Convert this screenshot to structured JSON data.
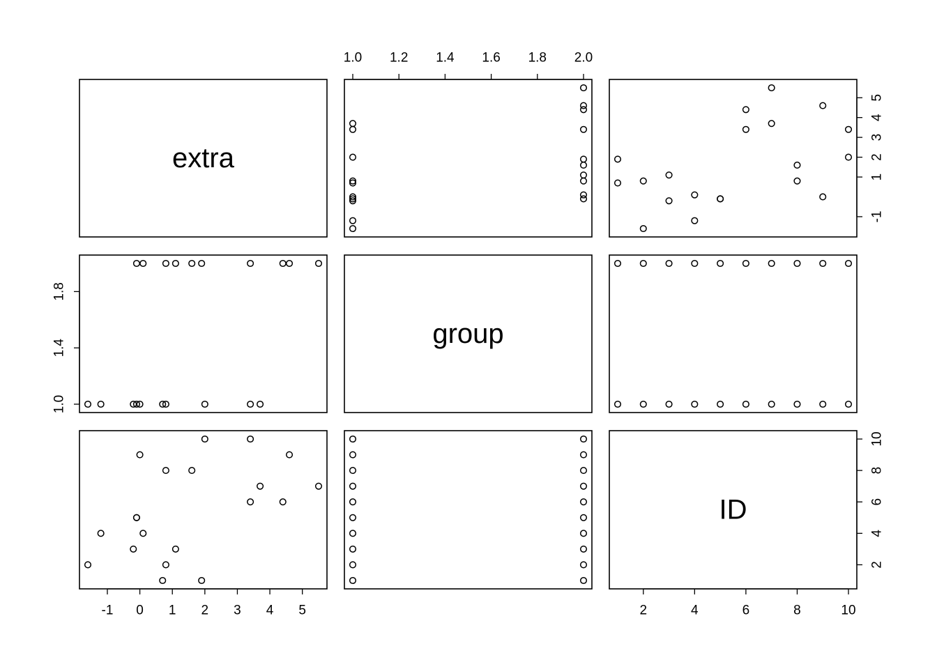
{
  "chart_data": {
    "type": "scatter",
    "subtype": "scatterplot-matrix",
    "title": "",
    "variables": [
      "extra",
      "group",
      "ID"
    ],
    "axes": {
      "extra": {
        "ticks": [
          -1,
          0,
          1,
          2,
          3,
          4,
          5
        ],
        "tick_labels": [
          "-1",
          "0",
          "1",
          "2",
          "3",
          "4",
          "5"
        ],
        "range": [
          -1.6,
          5.5
        ]
      },
      "group": {
        "ticks_top": [
          1.0,
          1.2,
          1.4,
          1.6,
          1.8,
          2.0
        ],
        "tick_labels_top": [
          "1.0",
          "1.2",
          "1.4",
          "1.6",
          "1.8",
          "2.0"
        ],
        "ticks_left": [
          1.0,
          1.4,
          1.8
        ],
        "tick_labels_left": [
          "1.0",
          "1.4",
          "1.8"
        ],
        "range": [
          1,
          2
        ]
      },
      "ID": {
        "ticks_bottom": [
          2,
          4,
          6,
          8,
          10
        ],
        "tick_labels_bottom": [
          "2",
          "4",
          "6",
          "8",
          "10"
        ],
        "ticks_right": [
          2,
          4,
          6,
          8,
          10
        ],
        "tick_labels_right": [
          "2",
          "4",
          "6",
          "8",
          "10"
        ],
        "range": [
          1,
          10
        ]
      }
    },
    "right_axis_extra": {
      "ticks": [
        -1,
        1,
        2,
        3,
        4,
        5
      ],
      "tick_labels": [
        "-1",
        "1",
        "2",
        "3",
        "4",
        "5"
      ]
    },
    "data": {
      "extra": [
        0.7,
        -1.6,
        -0.2,
        -1.2,
        -0.1,
        3.4,
        3.7,
        0.8,
        0.0,
        2.0,
        1.9,
        0.8,
        1.1,
        0.1,
        -0.1,
        4.4,
        5.5,
        1.6,
        4.6,
        3.4
      ],
      "group": [
        1,
        1,
        1,
        1,
        1,
        1,
        1,
        1,
        1,
        1,
        2,
        2,
        2,
        2,
        2,
        2,
        2,
        2,
        2,
        2
      ],
      "ID": [
        1,
        2,
        3,
        4,
        5,
        6,
        7,
        8,
        9,
        10,
        1,
        2,
        3,
        4,
        5,
        6,
        7,
        8,
        9,
        10
      ]
    },
    "grid": false,
    "legend": "none"
  }
}
